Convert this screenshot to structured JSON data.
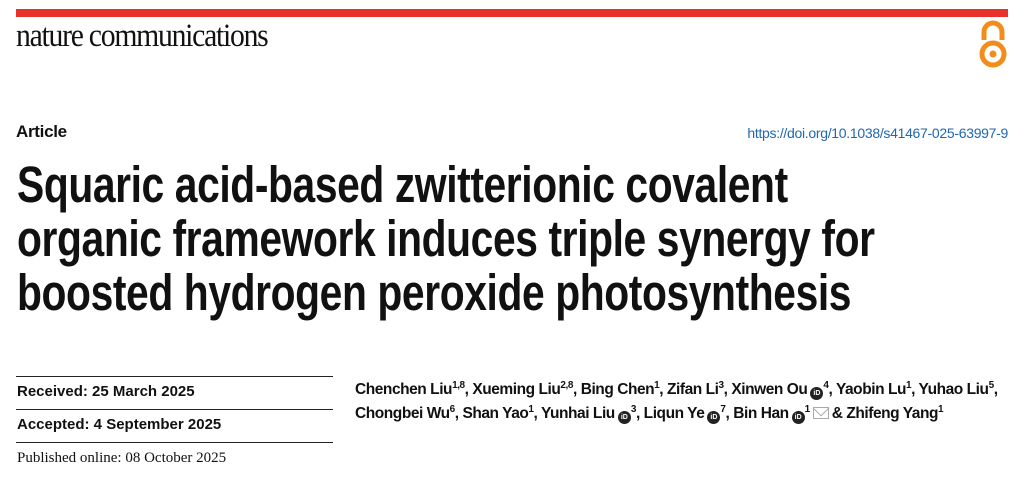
{
  "header": {
    "journal": "nature communications",
    "open_access_icon": "open-access-icon",
    "accent_color": "#e8312b",
    "oa_color": "#f28c1b"
  },
  "article": {
    "type": "Article",
    "doi": "https://doi.org/10.1038/s41467-025-63997-9",
    "title_lines": [
      "Squaric acid-based zwitterionic covalent",
      "organic framework induces triple synergy for",
      "boosted hydrogen peroxide photosynthesis"
    ],
    "received": "Received: 25 March 2025",
    "accepted": "Accepted: 4 September 2025",
    "published": "Published online: 08 October 2025",
    "authors": [
      {
        "name": "Chenchen Liu",
        "aff": "1,8",
        "orcid": false
      },
      {
        "name": "Xueming Liu",
        "aff": "2,8",
        "orcid": false
      },
      {
        "name": "Bing Chen",
        "aff": "1",
        "orcid": false
      },
      {
        "name": "Zifan Li",
        "aff": "3",
        "orcid": false
      },
      {
        "name": "Xinwen Ou",
        "aff": "4",
        "orcid": true
      },
      {
        "name": "Yaobin Lu",
        "aff": "1",
        "orcid": false
      },
      {
        "name": "Yuhao Liu",
        "aff": "5",
        "orcid": false
      },
      {
        "name": "Chongbei Wu",
        "aff": "6",
        "orcid": false
      },
      {
        "name": "Shan Yao",
        "aff": "1",
        "orcid": false
      },
      {
        "name": "Yunhai Liu",
        "aff": "3",
        "orcid": true
      },
      {
        "name": "Liqun Ye",
        "aff": "7",
        "orcid": true
      },
      {
        "name": "Bin Han",
        "aff": "1",
        "orcid": true,
        "corresponding": true
      },
      {
        "name": "Zhifeng Yang",
        "aff": "1",
        "orcid": false
      }
    ],
    "orcid_label": "iD",
    "final_separator": "&"
  }
}
